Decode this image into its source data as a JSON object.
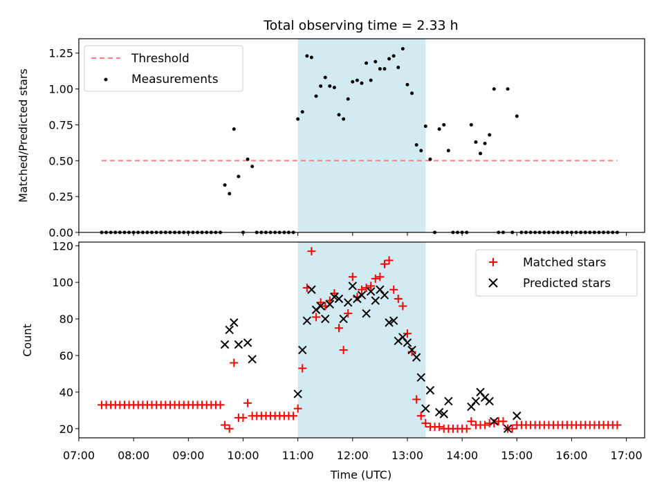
{
  "figure_title": "Total observing time = 2.33 h",
  "colors": {
    "threshold": "#ff7f7f",
    "window": "#add8e6",
    "matched": "#ff0000",
    "predicted": "#000000",
    "measurements": "#000000"
  },
  "chart_data": [
    {
      "type": "scatter",
      "panel": "top",
      "title": "Total observing time = 2.33 h",
      "xlabel": "",
      "ylabel": "Matched/Predicted stars",
      "xlim": [
        "07:00",
        "17:20"
      ],
      "ylim": [
        0,
        1.35
      ],
      "yticks": [
        0.0,
        0.25,
        0.5,
        0.75,
        1.0,
        1.25
      ],
      "ytick_labels": [
        "0.00",
        "0.25",
        "0.50",
        "0.75",
        "1.00",
        "1.25"
      ],
      "observing_window": [
        "11:00",
        "13:20"
      ],
      "legend": {
        "position": "top-left",
        "entries": [
          "Threshold",
          "Measurements"
        ]
      },
      "series": [
        {
          "name": "Threshold",
          "kind": "dashed-line",
          "x": [
            "07:25",
            "16:50"
          ],
          "y": [
            0.5,
            0.5
          ]
        },
        {
          "name": "Measurements",
          "kind": "dots",
          "points": [
            [
              "09:40",
              0.33
            ],
            [
              "09:45",
              0.27
            ],
            [
              "09:50",
              0.72
            ],
            [
              "09:55",
              0.39
            ],
            [
              "10:05",
              0.51
            ],
            [
              "10:10",
              0.46
            ],
            [
              "11:00",
              0.79
            ],
            [
              "11:05",
              0.84
            ],
            [
              "11:10",
              1.23
            ],
            [
              "11:15",
              1.22
            ],
            [
              "11:20",
              0.95
            ],
            [
              "11:25",
              1.02
            ],
            [
              "11:30",
              1.08
            ],
            [
              "11:35",
              1.02
            ],
            [
              "11:40",
              1.01
            ],
            [
              "11:45",
              0.82
            ],
            [
              "11:50",
              0.79
            ],
            [
              "11:55",
              0.93
            ],
            [
              "12:00",
              1.05
            ],
            [
              "12:05",
              1.06
            ],
            [
              "12:10",
              1.04
            ],
            [
              "12:15",
              1.18
            ],
            [
              "12:20",
              1.06
            ],
            [
              "12:25",
              1.19
            ],
            [
              "12:30",
              1.14
            ],
            [
              "12:35",
              1.14
            ],
            [
              "12:40",
              1.21
            ],
            [
              "12:45",
              1.23
            ],
            [
              "12:50",
              1.15
            ],
            [
              "12:55",
              1.28
            ],
            [
              "13:00",
              1.03
            ],
            [
              "13:05",
              0.97
            ],
            [
              "13:10",
              0.61
            ],
            [
              "13:15",
              0.57
            ],
            [
              "13:20",
              0.74
            ],
            [
              "13:25",
              0.51
            ],
            [
              "13:35",
              0.72
            ],
            [
              "13:40",
              0.75
            ],
            [
              "13:45",
              0.57
            ],
            [
              "14:10",
              0.75
            ],
            [
              "14:15",
              0.63
            ],
            [
              "14:20",
              0.55
            ],
            [
              "14:25",
              0.62
            ],
            [
              "14:30",
              0.68
            ],
            [
              "14:35",
              1.0
            ],
            [
              "14:50",
              1.0
            ],
            [
              "15:00",
              0.81
            ]
          ],
          "zero_runs": [
            [
              "07:25",
              "09:35"
            ],
            [
              "10:00",
              "10:00"
            ],
            [
              "10:15",
              "10:55"
            ],
            [
              "13:30",
              "13:30"
            ],
            [
              "13:50",
              "14:05"
            ],
            [
              "14:40",
              "14:45"
            ],
            [
              "14:55",
              "14:55"
            ],
            [
              "15:05",
              "16:50"
            ]
          ]
        }
      ]
    },
    {
      "type": "scatter",
      "panel": "bottom",
      "xlabel": "Time (UTC)",
      "ylabel": "Count",
      "xlim": [
        "07:00",
        "17:20"
      ],
      "ylim": [
        15,
        122
      ],
      "yticks": [
        20,
        40,
        60,
        80,
        100,
        120
      ],
      "xticks": [
        "07:00",
        "08:00",
        "09:00",
        "10:00",
        "11:00",
        "12:00",
        "13:00",
        "14:00",
        "15:00",
        "16:00",
        "17:00"
      ],
      "observing_window": [
        "11:00",
        "13:20"
      ],
      "legend": {
        "position": "top-right",
        "entries": [
          "Matched stars",
          "Predicted stars"
        ]
      },
      "series": [
        {
          "name": "Matched stars",
          "marker": "+",
          "points": [
            [
              "09:40",
              22
            ],
            [
              "09:45",
              20
            ],
            [
              "09:50",
              56
            ],
            [
              "09:55",
              26
            ],
            [
              "10:00",
              26
            ],
            [
              "10:05",
              34
            ],
            [
              "11:00",
              31
            ],
            [
              "11:05",
              53
            ],
            [
              "11:10",
              97
            ],
            [
              "11:15",
              117
            ],
            [
              "11:20",
              81
            ],
            [
              "11:25",
              89
            ],
            [
              "11:30",
              87
            ],
            [
              "11:35",
              90
            ],
            [
              "11:40",
              94
            ],
            [
              "11:45",
              75
            ],
            [
              "11:50",
              63
            ],
            [
              "11:55",
              83
            ],
            [
              "12:00",
              103
            ],
            [
              "12:05",
              92
            ],
            [
              "12:10",
              96
            ],
            [
              "12:15",
              97
            ],
            [
              "12:20",
              98
            ],
            [
              "12:25",
              102
            ],
            [
              "12:30",
              103
            ],
            [
              "12:35",
              110
            ],
            [
              "12:40",
              112
            ],
            [
              "12:45",
              96
            ],
            [
              "12:50",
              91
            ],
            [
              "12:55",
              87
            ],
            [
              "13:00",
              72
            ],
            [
              "13:05",
              62
            ],
            [
              "13:10",
              36
            ],
            [
              "13:15",
              27
            ],
            [
              "13:20",
              23
            ],
            [
              "13:25",
              21
            ],
            [
              "13:30",
              21
            ],
            [
              "13:35",
              21
            ],
            [
              "13:40",
              20
            ],
            [
              "13:45",
              20
            ],
            [
              "13:50",
              20
            ],
            [
              "13:55",
              20
            ],
            [
              "14:00",
              20
            ],
            [
              "14:05",
              20
            ],
            [
              "14:10",
              24
            ],
            [
              "14:15",
              22
            ],
            [
              "14:20",
              22
            ],
            [
              "14:25",
              22
            ],
            [
              "14:30",
              23
            ],
            [
              "14:35",
              23
            ],
            [
              "14:40",
              24
            ],
            [
              "14:45",
              24
            ],
            [
              "14:50",
              20
            ],
            [
              "14:55",
              20
            ],
            [
              "15:00",
              22
            ]
          ],
          "constant_runs": [
            [
              "07:25",
              "09:35",
              33
            ],
            [
              "10:10",
              "10:55",
              27
            ],
            [
              "15:05",
              "16:50",
              22
            ]
          ]
        },
        {
          "name": "Predicted stars",
          "marker": "x",
          "points": [
            [
              "09:40",
              66
            ],
            [
              "09:45",
              74
            ],
            [
              "09:50",
              78
            ],
            [
              "09:55",
              66
            ],
            [
              "10:05",
              67
            ],
            [
              "10:10",
              58
            ],
            [
              "11:00",
              39
            ],
            [
              "11:05",
              63
            ],
            [
              "11:10",
              79
            ],
            [
              "11:15",
              96
            ],
            [
              "11:20",
              85
            ],
            [
              "11:25",
              87
            ],
            [
              "11:30",
              80
            ],
            [
              "11:35",
              88
            ],
            [
              "11:40",
              92
            ],
            [
              "11:45",
              91
            ],
            [
              "11:50",
              80
            ],
            [
              "11:55",
              89
            ],
            [
              "12:00",
              98
            ],
            [
              "12:05",
              91
            ],
            [
              "12:10",
              93
            ],
            [
              "12:15",
              83
            ],
            [
              "12:20",
              95
            ],
            [
              "12:25",
              90
            ],
            [
              "12:30",
              96
            ],
            [
              "12:35",
              93
            ],
            [
              "12:40",
              78
            ],
            [
              "12:45",
              79
            ],
            [
              "12:50",
              68
            ],
            [
              "12:55",
              70
            ],
            [
              "13:00",
              67
            ],
            [
              "13:05",
              63
            ],
            [
              "13:10",
              59
            ],
            [
              "13:15",
              48
            ],
            [
              "13:20",
              31
            ],
            [
              "13:25",
              41
            ],
            [
              "13:35",
              29
            ],
            [
              "13:40",
              28
            ],
            [
              "13:45",
              35
            ],
            [
              "14:10",
              32
            ],
            [
              "14:15",
              35
            ],
            [
              "14:20",
              40
            ],
            [
              "14:25",
              37
            ],
            [
              "14:30",
              35
            ],
            [
              "14:35",
              24
            ],
            [
              "14:50",
              20
            ],
            [
              "15:00",
              27
            ]
          ]
        }
      ]
    }
  ]
}
